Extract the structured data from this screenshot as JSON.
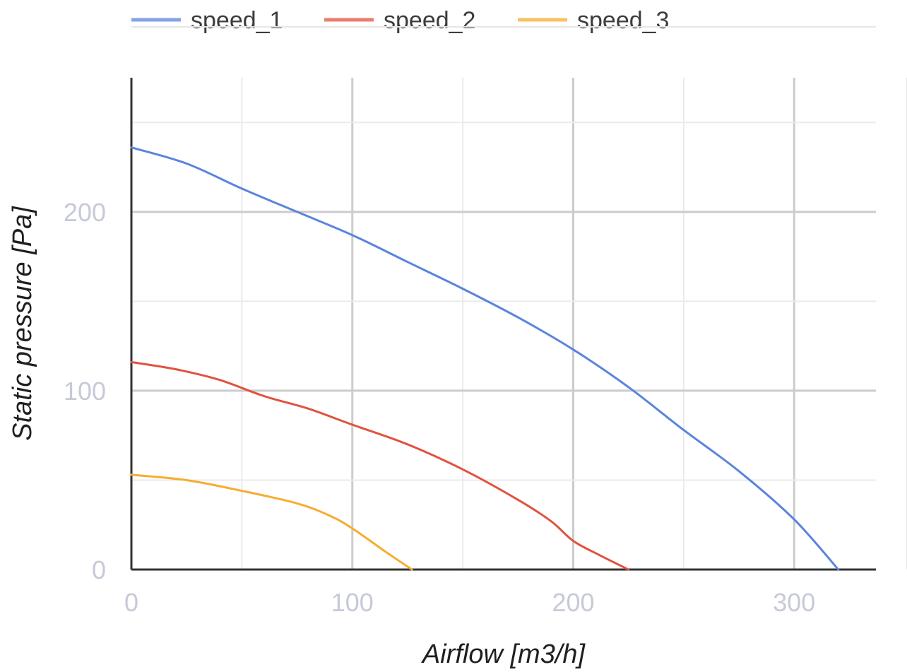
{
  "chart_data": {
    "type": "line",
    "title": "",
    "xlabel": "Airflow [m3/h]",
    "ylabel": "Static pressure [Pa]",
    "xlim": [
      0,
      337
    ],
    "ylim": [
      0,
      275
    ],
    "x_ticks": [
      "0",
      "100",
      "200",
      "300"
    ],
    "y_ticks": [
      "0",
      "100",
      "200"
    ],
    "grid": true,
    "legend": "top",
    "series": [
      {
        "name": "speed_1",
        "color": "#5b84dc",
        "points": [
          [
            0,
            236
          ],
          [
            25,
            227
          ],
          [
            50,
            213
          ],
          [
            75,
            200
          ],
          [
            100,
            187
          ],
          [
            125,
            172
          ],
          [
            150,
            157
          ],
          [
            175,
            141
          ],
          [
            200,
            123
          ],
          [
            225,
            102
          ],
          [
            250,
            78
          ],
          [
            275,
            55
          ],
          [
            300,
            28
          ],
          [
            320,
            0
          ]
        ]
      },
      {
        "name": "speed_2",
        "color": "#e0533f",
        "points": [
          [
            0,
            116
          ],
          [
            20,
            112
          ],
          [
            40,
            106
          ],
          [
            60,
            97
          ],
          [
            80,
            90
          ],
          [
            100,
            81
          ],
          [
            125,
            70
          ],
          [
            150,
            56
          ],
          [
            175,
            39
          ],
          [
            190,
            27
          ],
          [
            200,
            16
          ],
          [
            212,
            8
          ],
          [
            225,
            0
          ]
        ]
      },
      {
        "name": "speed_3",
        "color": "#f6ad2f",
        "points": [
          [
            0,
            53
          ],
          [
            25,
            50
          ],
          [
            50,
            44
          ],
          [
            75,
            37
          ],
          [
            90,
            30
          ],
          [
            100,
            23
          ],
          [
            115,
            10
          ],
          [
            127,
            0
          ]
        ]
      }
    ]
  }
}
